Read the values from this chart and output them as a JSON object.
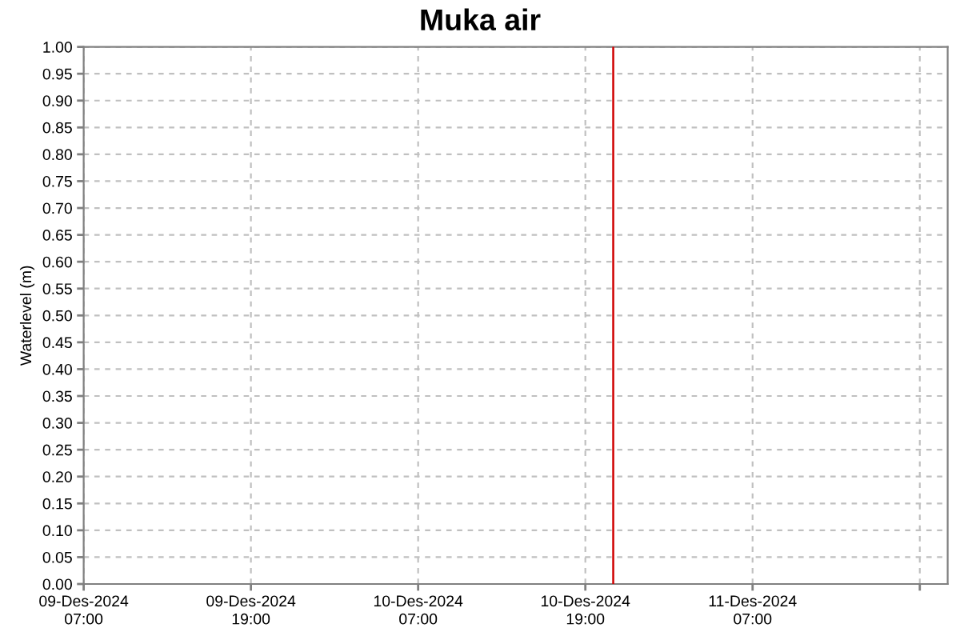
{
  "chart_data": {
    "type": "line",
    "title": "Muka air",
    "ylabel": "Waterlevel (m)",
    "xlim": [
      "2024-12-09T07:00",
      "2024-12-11T21:00"
    ],
    "xticks": [
      {
        "value": "2024-12-09T07:00",
        "label": "09-Des-2024\n07:00"
      },
      {
        "value": "2024-12-09T19:00",
        "label": "09-Des-2024\n19:00"
      },
      {
        "value": "2024-12-10T07:00",
        "label": "10-Des-2024\n07:00"
      },
      {
        "value": "2024-12-10T19:00",
        "label": "10-Des-2024\n19:00"
      },
      {
        "value": "2024-12-11T07:00",
        "label": "11-Des-2024\n07:00"
      },
      {
        "value": "2024-12-11T19:00",
        "label": null
      }
    ],
    "ylim": [
      0,
      1
    ],
    "yticks": [
      {
        "value": 0,
        "label": "0.00"
      },
      {
        "value": 0.05,
        "label": "0.05"
      },
      {
        "value": 0.1,
        "label": "0.10"
      },
      {
        "value": 0.15,
        "label": "0.15"
      },
      {
        "value": 0.2,
        "label": "0.20"
      },
      {
        "value": 0.25,
        "label": "0.25"
      },
      {
        "value": 0.3,
        "label": "0.30"
      },
      {
        "value": 0.35,
        "label": "0.35"
      },
      {
        "value": 0.4,
        "label": "0.40"
      },
      {
        "value": 0.45,
        "label": "0.45"
      },
      {
        "value": 0.5,
        "label": "0.50"
      },
      {
        "value": 0.55,
        "label": "0.55"
      },
      {
        "value": 0.6,
        "label": "0.60"
      },
      {
        "value": 0.65,
        "label": "0.65"
      },
      {
        "value": 0.7,
        "label": "0.70"
      },
      {
        "value": 0.75,
        "label": "0.75"
      },
      {
        "value": 0.8,
        "label": "0.80"
      },
      {
        "value": 0.85,
        "label": "0.85"
      },
      {
        "value": 0.9,
        "label": "0.90"
      },
      {
        "value": 0.95,
        "label": "0.95"
      },
      {
        "value": 1,
        "label": "1.00"
      }
    ],
    "grid": true,
    "ref_lines": [
      {
        "axis": "x",
        "value": "2024-12-10T21:00",
        "color": "#d00000"
      }
    ]
  }
}
